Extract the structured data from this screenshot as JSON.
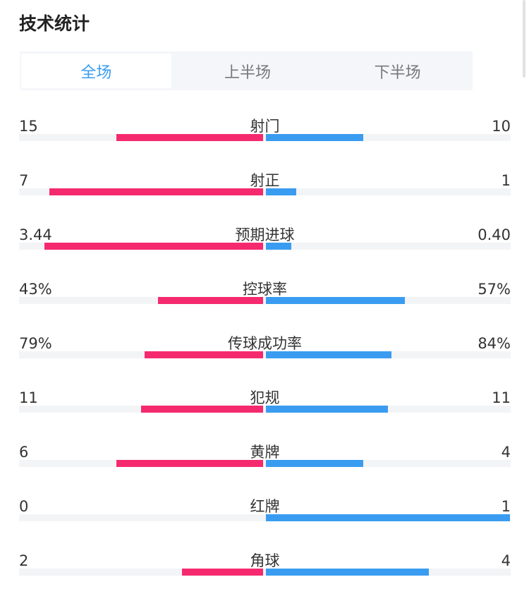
{
  "title": "技术统计",
  "tabs": [
    {
      "label": "全场",
      "active": true
    },
    {
      "label": "上半场",
      "active": false
    },
    {
      "label": "下半场",
      "active": false
    }
  ],
  "colors": {
    "home": "#f52a6e",
    "away": "#3a9cf0",
    "active_tab": "#3a9cf0"
  },
  "stats": [
    {
      "label": "射门",
      "home": "15",
      "away": "10",
      "home_num": 15,
      "away_num": 10
    },
    {
      "label": "射正",
      "home": "7",
      "away": "1",
      "home_num": 7,
      "away_num": 1
    },
    {
      "label": "预期进球",
      "home": "3.44",
      "away": "0.40",
      "home_num": 3.44,
      "away_num": 0.4
    },
    {
      "label": "控球率",
      "home": "43%",
      "away": "57%",
      "home_num": 43,
      "away_num": 57
    },
    {
      "label": "传球成功率",
      "home": "79%",
      "away": "84%",
      "home_num": 79,
      "away_num": 84
    },
    {
      "label": "犯规",
      "home": "11",
      "away": "11",
      "home_num": 11,
      "away_num": 11
    },
    {
      "label": "黄牌",
      "home": "6",
      "away": "4",
      "home_num": 6,
      "away_num": 4
    },
    {
      "label": "红牌",
      "home": "0",
      "away": "1",
      "home_num": 0,
      "away_num": 1
    },
    {
      "label": "角球",
      "home": "2",
      "away": "4",
      "home_num": 2,
      "away_num": 4
    }
  ]
}
